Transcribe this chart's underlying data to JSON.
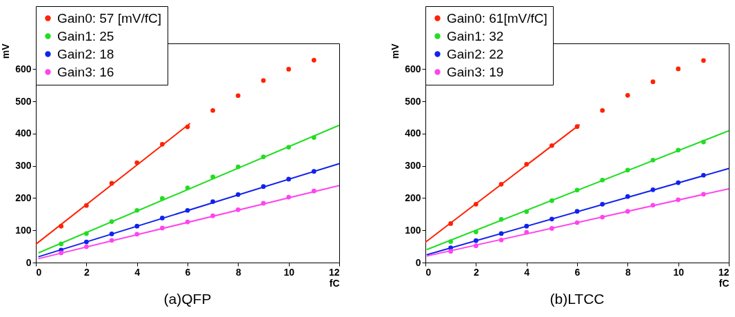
{
  "chart_data": [
    {
      "type": "scatter",
      "xlabel": "fC",
      "ylabel": "mV",
      "xlim": [
        0,
        12
      ],
      "xticks": [
        0,
        2,
        4,
        6,
        8,
        10,
        12
      ],
      "ylim": [
        0,
        680
      ],
      "yticks": [
        0,
        100,
        200,
        300,
        400,
        500,
        600
      ],
      "legend": "top left",
      "annotations": [
        "(a)QFP"
      ],
      "series": [
        {
          "name": "Gain0: 57 [mV/fC]",
          "color": "#ff2200",
          "marker": "circle",
          "x": [
            1,
            2,
            3,
            4,
            5,
            6,
            7,
            8,
            9,
            10,
            11
          ],
          "values": [
            113,
            177,
            246,
            310,
            367,
            421,
            472,
            518,
            565,
            600,
            628
          ]
        },
        {
          "name": "Gain1: 25",
          "color": "#22dd22",
          "marker": "circle",
          "x": [
            1,
            2,
            3,
            4,
            5,
            6,
            7,
            8,
            9,
            10,
            11
          ],
          "values": [
            58,
            90,
            127,
            162,
            199,
            232,
            266,
            297,
            328,
            358,
            388
          ]
        },
        {
          "name": "Gain2: 18",
          "color": "#1122ee",
          "marker": "circle",
          "x": [
            1,
            2,
            3,
            4,
            5,
            6,
            7,
            8,
            9,
            10,
            11
          ],
          "values": [
            39,
            64,
            89,
            113,
            138,
            162,
            189,
            211,
            236,
            259,
            283
          ]
        },
        {
          "name": "Gain3: 16",
          "color": "#ff44ee",
          "marker": "circle",
          "x": [
            1,
            2,
            3,
            4,
            5,
            6,
            7,
            8,
            9,
            10,
            11
          ],
          "values": [
            30,
            49,
            69,
            88,
            107,
            126,
            145,
            164,
            184,
            203,
            222
          ]
        },
        {
          "type": "line",
          "color": "#ff2200",
          "marker": "none",
          "x": [
            0,
            6.1
          ],
          "values": [
            57,
            432
          ]
        },
        {
          "type": "line",
          "color": "#22dd22",
          "marker": "none",
          "x": [
            0.1,
            12
          ],
          "values": [
            30,
            426
          ]
        },
        {
          "type": "line",
          "color": "#1122ee",
          "marker": "none",
          "x": [
            0.1,
            12
          ],
          "values": [
            18,
            307
          ]
        },
        {
          "type": "line",
          "color": "#ff44ee",
          "marker": "none",
          "x": [
            0.1,
            12
          ],
          "values": [
            12,
            239
          ]
        }
      ]
    },
    {
      "type": "scatter",
      "xlabel": "fC",
      "ylabel": "mV",
      "xlim": [
        0,
        12
      ],
      "xticks": [
        0,
        2,
        4,
        6,
        8,
        10,
        12
      ],
      "ylim": [
        0,
        680
      ],
      "yticks": [
        0,
        100,
        200,
        300,
        400,
        500,
        600
      ],
      "legend": "top left",
      "annotations": [
        "(b)LTCC"
      ],
      "series": [
        {
          "name": "Gain0: 61[mV/fC]",
          "color": "#ff2200",
          "marker": "circle",
          "x": [
            1,
            2,
            3,
            4,
            5,
            6,
            7,
            8,
            9,
            10,
            11
          ],
          "values": [
            121,
            181,
            243,
            305,
            363,
            422,
            472,
            519,
            561,
            601,
            627
          ]
        },
        {
          "name": "Gain1: 32",
          "color": "#22dd22",
          "marker": "circle",
          "x": [
            1,
            2,
            3,
            4,
            5,
            6,
            7,
            8,
            9,
            10,
            11
          ],
          "values": [
            65,
            95,
            134,
            158,
            192,
            225,
            256,
            287,
            318,
            349,
            374
          ]
        },
        {
          "name": "Gain2: 22",
          "color": "#1122ee",
          "marker": "circle",
          "x": [
            1,
            2,
            3,
            4,
            5,
            6,
            7,
            8,
            9,
            10,
            11
          ],
          "values": [
            46,
            68,
            90,
            113,
            135,
            159,
            181,
            205,
            226,
            248,
            271
          ]
        },
        {
          "name": "Gain3: 19",
          "color": "#ff44ee",
          "marker": "circle",
          "x": [
            1,
            2,
            3,
            4,
            5,
            6,
            7,
            8,
            9,
            10,
            11
          ],
          "values": [
            35,
            52,
            70,
            94,
            106,
            124,
            141,
            159,
            178,
            195,
            212
          ]
        },
        {
          "type": "line",
          "color": "#ff2200",
          "marker": "none",
          "x": [
            0,
            6.1
          ],
          "values": [
            63,
            428
          ]
        },
        {
          "type": "line",
          "color": "#22dd22",
          "marker": "none",
          "x": [
            0.05,
            12
          ],
          "values": [
            40,
            409
          ]
        },
        {
          "type": "line",
          "color": "#1122ee",
          "marker": "none",
          "x": [
            0.05,
            12
          ],
          "values": [
            24,
            292
          ]
        },
        {
          "type": "line",
          "color": "#ff44ee",
          "marker": "none",
          "x": [
            0.05,
            12
          ],
          "values": [
            20,
            229
          ]
        }
      ]
    }
  ]
}
